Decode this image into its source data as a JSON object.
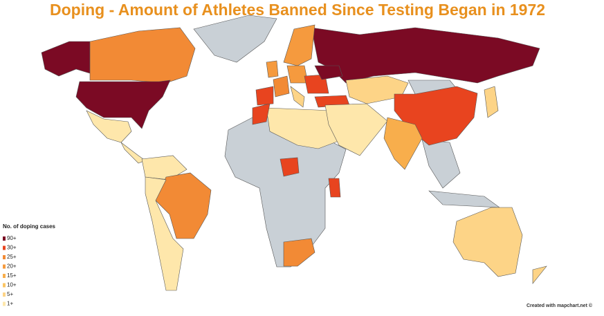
{
  "title": "Doping - Amount of Athletes Banned Since Testing Began in 1972",
  "legend": {
    "title": "No. of doping cases",
    "no_data_color": "#c9d0d6",
    "items": [
      {
        "label": "90+",
        "color": "#7b0a24"
      },
      {
        "label": "30+",
        "color": "#e8441f"
      },
      {
        "label": "25+",
        "color": "#f28a35"
      },
      {
        "label": "20+",
        "color": "#f59a3e"
      },
      {
        "label": "15+",
        "color": "#f8ae4c"
      },
      {
        "label": "10+",
        "color": "#fbc564"
      },
      {
        "label": "5+",
        "color": "#fdd487"
      },
      {
        "label": "1+",
        "color": "#fee7ab"
      }
    ]
  },
  "credit": "Created with mapchart.net ©"
}
